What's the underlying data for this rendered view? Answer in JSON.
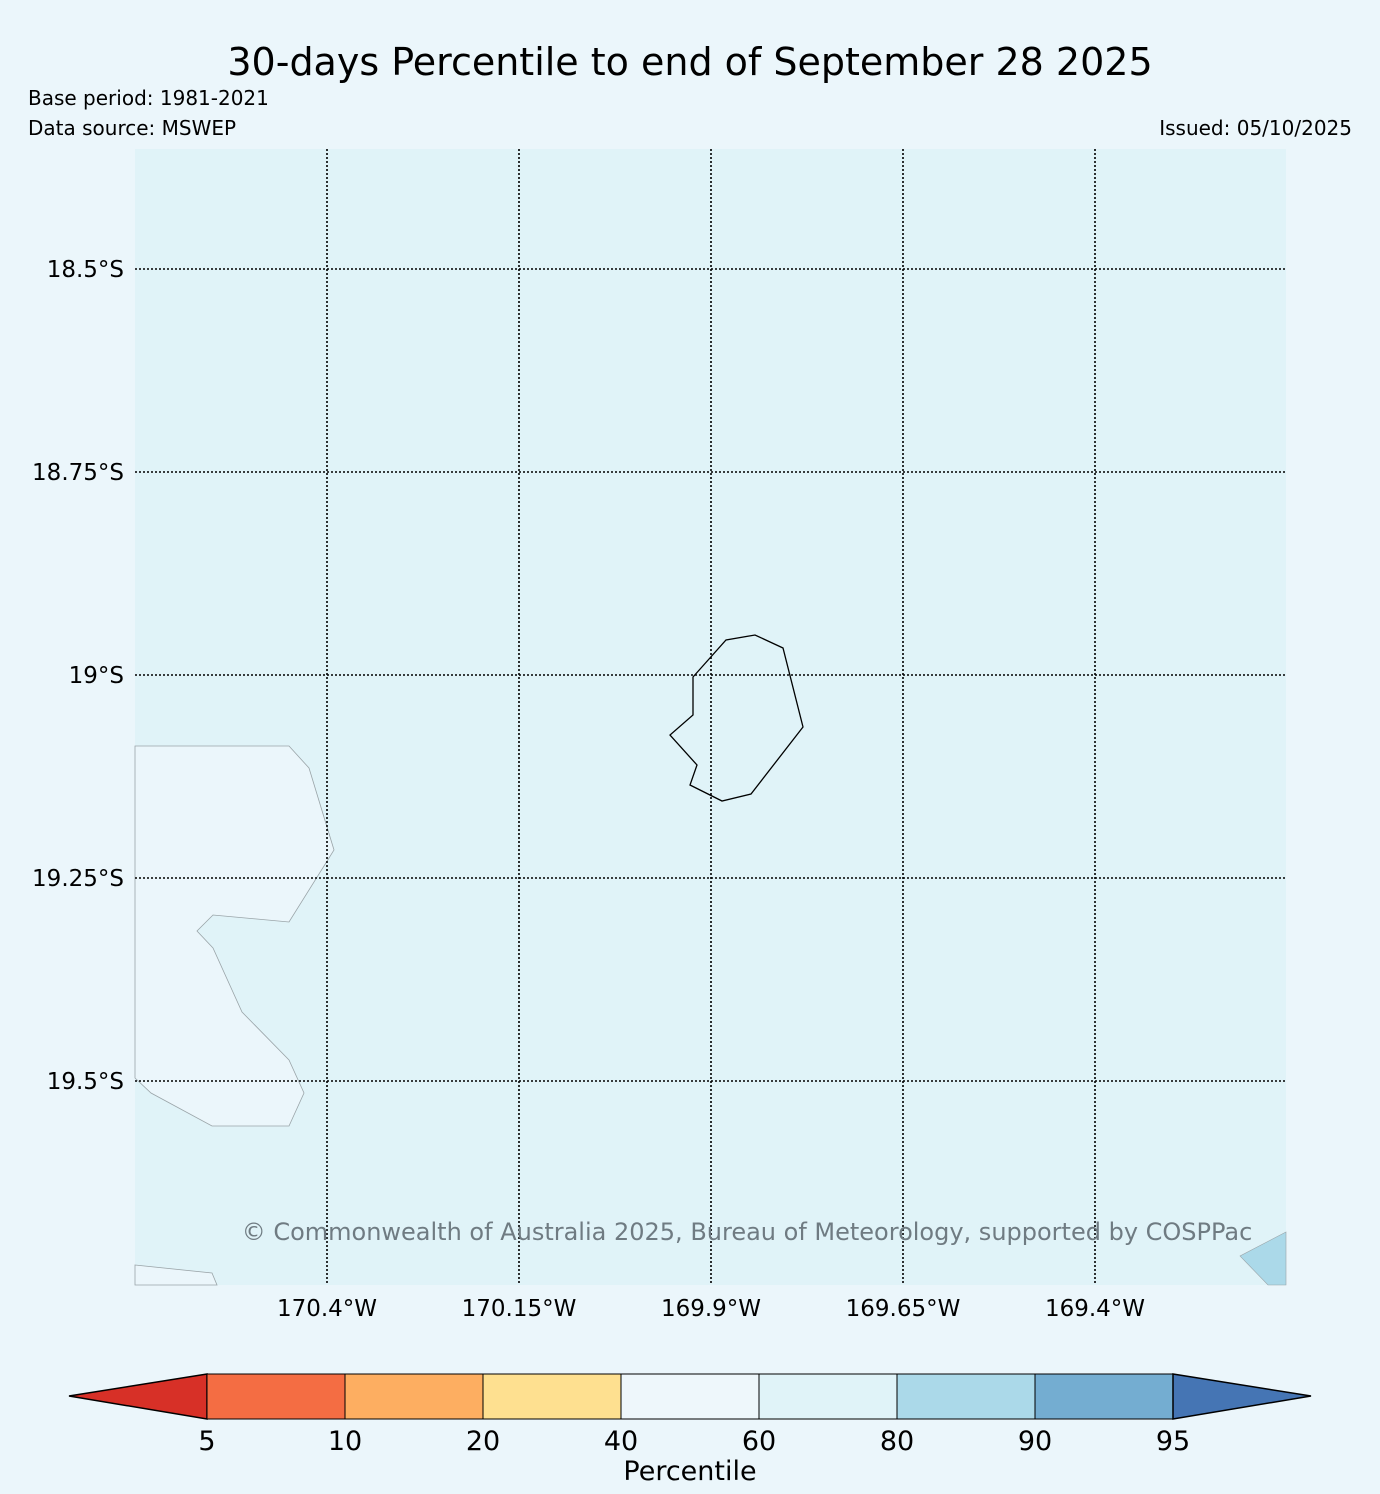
{
  "header": {
    "title": "30-days Percentile to end of September 28 2025",
    "base_period": "Base period: 1981-2021",
    "data_source": "Data source: MSWEP",
    "issued": "Issued: 05/10/2025"
  },
  "map": {
    "lat_labels": [
      "18.5°S",
      "18.75°S",
      "19°S",
      "19.25°S",
      "19.5°S"
    ],
    "lon_labels": [
      "170.4°W",
      "170.15°W",
      "169.9°W",
      "169.65°W",
      "169.4°W"
    ],
    "copyright": "© Commonwealth of Australia 2025, Bureau of Meteorology, supported by COSPPac",
    "background_category": "60-80",
    "colors": {
      "ocean": "#e0f3f8",
      "land_pale": "#ebf6fb",
      "high_patch": "#abd9e9"
    }
  },
  "legend": {
    "title": "Percentile",
    "ticks": [
      "5",
      "10",
      "20",
      "40",
      "60",
      "80",
      "90",
      "95"
    ],
    "colors": [
      "#d73027",
      "#f46d43",
      "#fdae61",
      "#fee090",
      "#eef7fb",
      "#e0f3f8",
      "#abd9e9",
      "#74add1",
      "#4575b4"
    ]
  }
}
